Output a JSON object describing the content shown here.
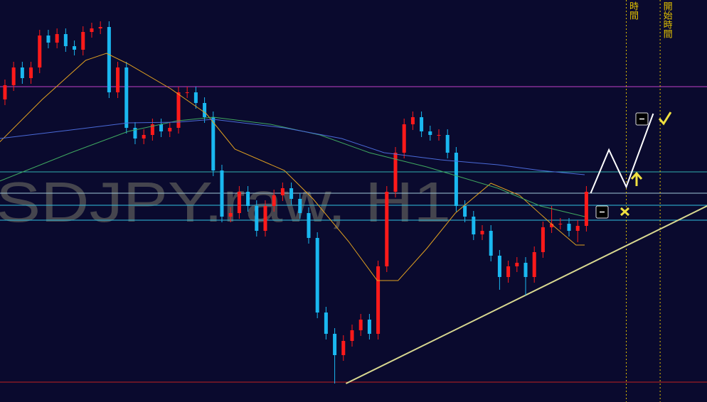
{
  "chart_data": {
    "type": "candlestick",
    "watermark": "SDJPY.raw, H1",
    "xlim": [
      -0.57,
      80.9
    ],
    "ylim": [
      0,
      566
    ],
    "up_color": "#ff1a1a",
    "down_color": "#1ab8f0",
    "open": [
      426,
      446,
      471,
      456,
      471,
      516,
      506,
      518,
      501,
      496,
      521,
      526,
      528,
      436,
      471,
      386,
      371,
      376,
      391,
      381,
      386,
      436,
      436,
      421,
      401,
      326,
      261,
      266,
      296,
      276,
      241,
      276,
      291,
      301,
      286,
      266,
      231,
      126,
      96,
      66,
      86,
      101,
      116,
      96,
      191,
      296,
      351,
      391,
      401,
      381,
      376,
      376,
      351,
      276,
      261,
      236,
      241,
      206,
      176,
      191,
      196,
      176,
      211,
      246,
      251,
      251,
      241,
      248
    ],
    "high": [
      454,
      479,
      479,
      479,
      524,
      524,
      526,
      526,
      509,
      529,
      534,
      536,
      536,
      479,
      479,
      394,
      384,
      399,
      399,
      394,
      444,
      444,
      444,
      429,
      409,
      334,
      274,
      304,
      304,
      284,
      284,
      299,
      309,
      309,
      294,
      274,
      239,
      134,
      104,
      94,
      109,
      124,
      124,
      199,
      304,
      359,
      399,
      409,
      409,
      389,
      384,
      384,
      359,
      284,
      269,
      249,
      249,
      214,
      199,
      204,
      204,
      219,
      254,
      276,
      259,
      259,
      256,
      304
    ],
    "low": [
      418,
      438,
      448,
      448,
      463,
      498,
      498,
      493,
      488,
      488,
      513,
      518,
      428,
      428,
      378,
      363,
      363,
      368,
      373,
      373,
      378,
      428,
      413,
      393,
      318,
      253,
      253,
      258,
      268,
      233,
      233,
      268,
      283,
      278,
      258,
      223,
      118,
      88,
      26,
      58,
      78,
      93,
      88,
      88,
      183,
      288,
      343,
      383,
      373,
      368,
      368,
      343,
      268,
      253,
      228,
      228,
      198,
      158,
      168,
      183,
      150,
      168,
      203,
      238,
      243,
      233,
      225,
      240
    ],
    "close": [
      446,
      471,
      456,
      471,
      516,
      506,
      518,
      501,
      496,
      521,
      526,
      528,
      436,
      471,
      386,
      371,
      376,
      391,
      381,
      386,
      436,
      436,
      421,
      401,
      326,
      261,
      266,
      296,
      276,
      241,
      276,
      291,
      301,
      286,
      266,
      231,
      126,
      96,
      66,
      86,
      101,
      116,
      96,
      191,
      296,
      351,
      391,
      401,
      381,
      376,
      376,
      351,
      276,
      261,
      236,
      241,
      206,
      176,
      191,
      196,
      176,
      211,
      246,
      251,
      251,
      241,
      248,
      296
    ],
    "lines": [
      {
        "color": "#e0a020",
        "x": [
          -0.6,
          4.3,
          9.3,
          11.7,
          14.2,
          19.1,
          23.2,
          26.5,
          32.2,
          35.5,
          39.6,
          42.9,
          45.3,
          48.6,
          51.9,
          56.0,
          59.3,
          63.4,
          65.8,
          66.8
        ],
        "values": [
          366,
          426,
          481,
          491,
          476,
          441,
          406,
          356,
          326,
          286,
          226,
          171,
          171,
          216,
          266,
          308,
          291,
          246,
          221,
          221
        ]
      },
      {
        "color": "#3fa860",
        "x": [
          -0.6,
          7.6,
          14.2,
          19.9,
          24.0,
          30.6,
          36.3,
          42.0,
          48.6,
          52.7,
          56.8,
          61.7,
          66.8
        ],
        "values": [
          311,
          351,
          381,
          396,
          401,
          391,
          376,
          351,
          331,
          316,
          301,
          276,
          261
        ]
      },
      {
        "color": "#4a6ad8",
        "x": [
          -0.6,
          7.6,
          14.2,
          19.9,
          24.0,
          32.2,
          38.8,
          43.7,
          50.2,
          56.8,
          61.7,
          66.8
        ],
        "values": [
          371,
          383,
          393,
          394,
          398,
          386,
          371,
          351,
          341,
          334,
          326,
          320
        ]
      }
    ],
    "levels": [
      {
        "value": 444,
        "color": "#c040c8"
      },
      {
        "value": 324,
        "color": "#30b0b0"
      },
      {
        "value": 294,
        "color": "#a0c8d8"
      },
      {
        "value": 277,
        "color": "#30c0e0"
      },
      {
        "value": 256,
        "color": "#30c0e0"
      },
      {
        "value": 28,
        "color": "#c02020"
      }
    ],
    "trendline": {
      "color": "#d8d890",
      "x": [
        39.3,
        80.9
      ],
      "values": [
        26,
        276
      ]
    },
    "projection": {
      "color": "#ffffff",
      "x": [
        67.5,
        69.6,
        71.6,
        74.7
      ],
      "values": [
        294,
        355,
        303,
        406
      ]
    },
    "marker_color": "#e0c000",
    "markers": [
      {
        "value": 71.6,
        "label": "時間"
      },
      {
        "value": 75.5,
        "label": "開始時間"
      }
    ]
  }
}
